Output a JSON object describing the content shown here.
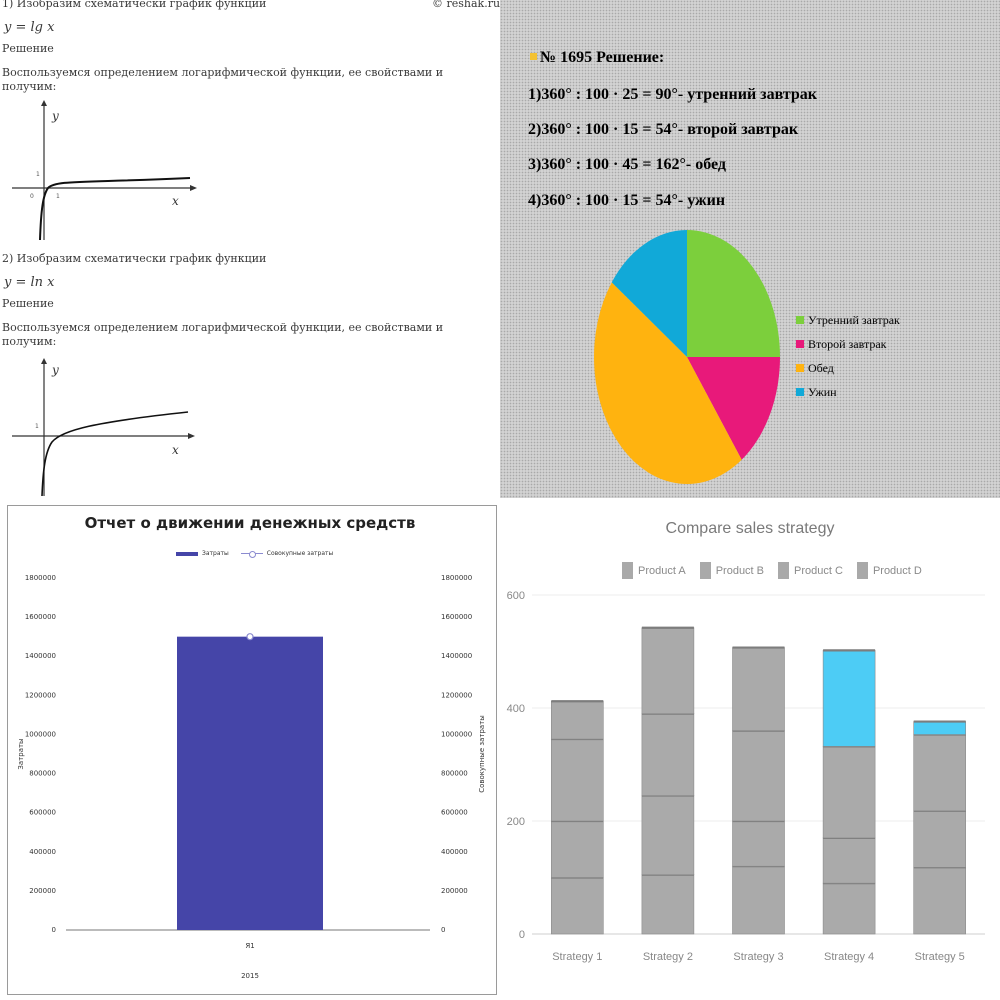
{
  "textbook": {
    "task1_heading": "1) Изобразим схематически график функции",
    "site": "© reshak.ru",
    "task1_formula": "y = lg x",
    "task1_solution_label": "Решение",
    "task1_solution_text_1": "Воспользуемся определением логарифмической функции, ее свойствами и",
    "task1_solution_text_2": "получим:",
    "task2_heading": "2) Изобразим схематически график функции",
    "task2_formula": "y = ln x",
    "task2_solution_label": "Решение",
    "task2_solution_text_1": "Воспользуемся определением логарифмической функции, ее свойствами и",
    "task2_solution_text_2": "получим:",
    "graph_axis_y": "y",
    "graph_axis_x": "x",
    "graph1_origin": "0",
    "graph1_tick_x": "1",
    "graph1_tick_y": "1",
    "graph2_tick": "1"
  },
  "slide": {
    "title": "№ 1695 Решение:",
    "lines": [
      "1)360° : 100 · 25 = 90°- утренний завтрак",
      "2)360° : 100 · 15 = 54°- второй завтрак",
      "3)360° : 100 · 45 = 162°- обед",
      "4)360° : 100 · 15 = 54°- ужин"
    ],
    "legend": [
      "Утренний завтрак",
      "Второй завтрак",
      "Обед",
      "Ужин"
    ],
    "colors": [
      "#7ccf3c",
      "#e8197a",
      "#ffb30f",
      "#11a9d8"
    ]
  },
  "cashflow": {
    "title": "Отчет о движении денежных средств",
    "legend_bar": "Затраты",
    "legend_line": "Совокупные затраты",
    "y_left_label": "Затраты",
    "y_right_label": "Совокупные затраты",
    "category": "Я1",
    "x_label": "2015",
    "bar_color": "#4545a8",
    "line_color": "#8b8bd0"
  },
  "strategy": {
    "title": "Compare sales strategy",
    "legend": [
      "Product A",
      "Product B",
      "Product C",
      "Product D"
    ],
    "highlight_color": "#4dccf5",
    "base_color": "#aaaaaa"
  },
  "chart_data": [
    {
      "type": "pie",
      "labels": [
        "Утренний завтрак",
        "Второй завтрак",
        "Обед",
        "Ужин"
      ],
      "values": [
        25,
        15,
        45,
        15
      ],
      "legend_position": "right"
    },
    {
      "type": "bar",
      "title": "Отчет о движении денежных средств",
      "categories": [
        "Я1"
      ],
      "series": [
        {
          "name": "Затраты",
          "values": [
            1500000
          ]
        },
        {
          "name": "Совокупные затраты",
          "values": [
            1500000
          ],
          "axis": "right"
        }
      ],
      "ylim": [
        0,
        1800000
      ],
      "y_ticks": [
        "0",
        "200000",
        "400000",
        "600000",
        "800000",
        "1000000",
        "1200000",
        "1400000",
        "1600000",
        "1800000"
      ],
      "xlabel": "2015",
      "ylabel": "Затраты",
      "y2label": "Совокупные затраты",
      "legend_position": "top"
    },
    {
      "type": "bar",
      "stacked": true,
      "title": "Compare sales strategy",
      "categories": [
        "Strategy 1",
        "Strategy 2",
        "Strategy 3",
        "Strategy 4",
        "Strategy 5"
      ],
      "series": [
        {
          "name": "Product A",
          "values": [
            100,
            105,
            120,
            90,
            118
          ]
        },
        {
          "name": "Product B",
          "values": [
            100,
            140,
            80,
            80,
            100
          ]
        },
        {
          "name": "Product C",
          "values": [
            145,
            145,
            160,
            162,
            135
          ]
        },
        {
          "name": "Product D",
          "values": [
            67,
            152,
            147,
            170,
            23
          ]
        }
      ],
      "highlight": {
        "Strategy 4": "Product D",
        "Strategy 5": "Product D"
      },
      "ylim": [
        0,
        600
      ],
      "y_ticks": [
        "0",
        "200",
        "400",
        "600"
      ],
      "legend_position": "top"
    }
  ]
}
